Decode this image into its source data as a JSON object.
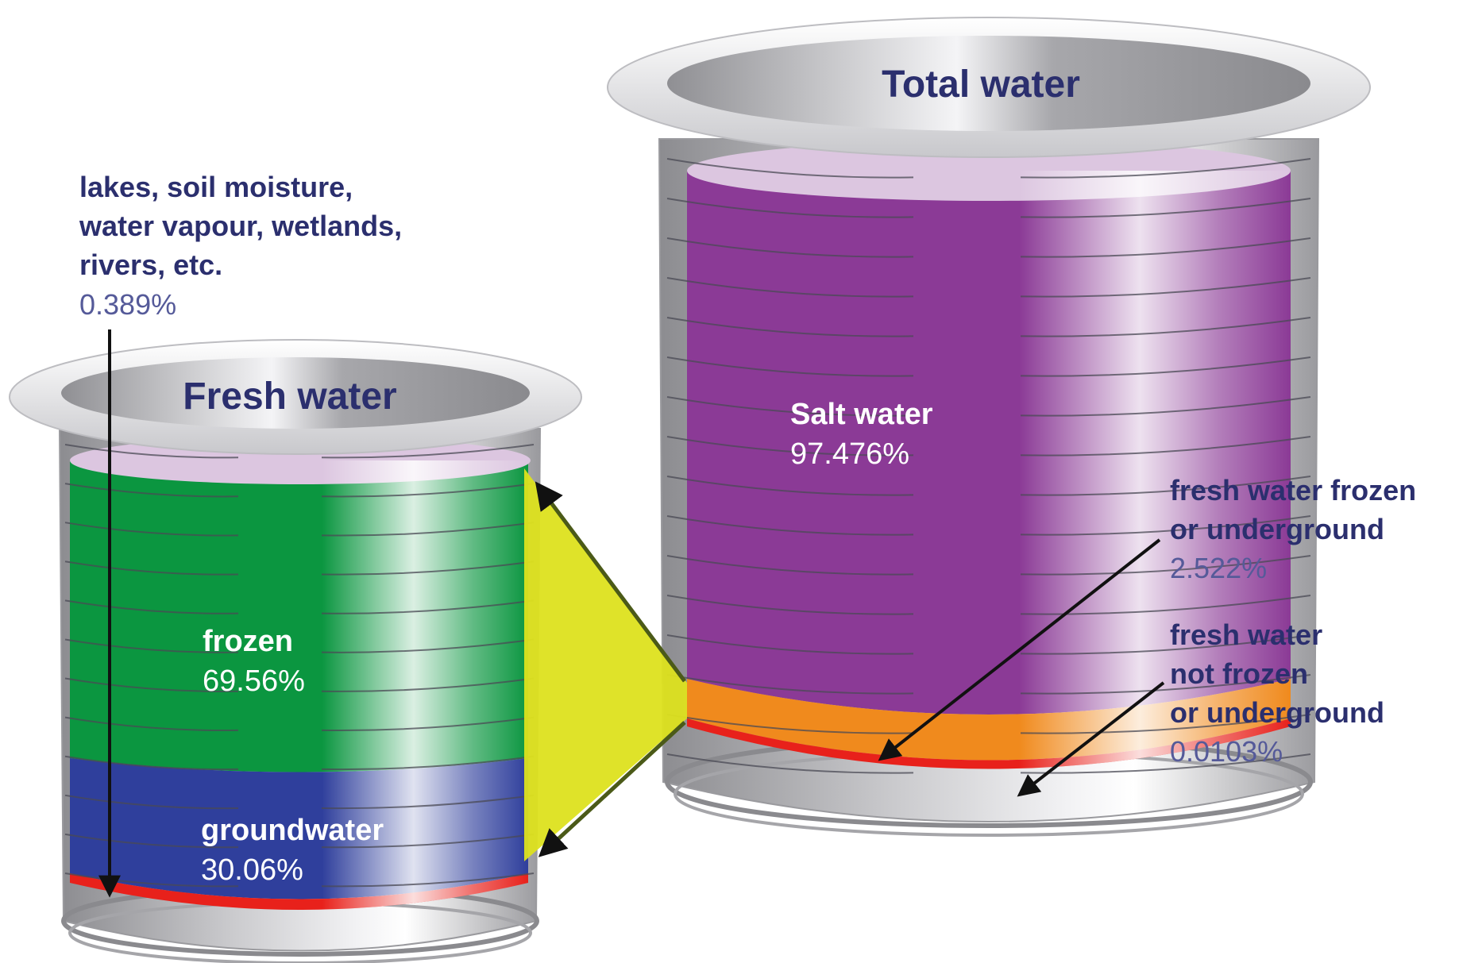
{
  "total_water": {
    "title": "Total water",
    "salt": {
      "label": "Salt water",
      "value": "97.476%"
    },
    "frozen_ground": {
      "label_line1": "fresh water frozen",
      "label_line2": "or underground",
      "value": "2.522%"
    },
    "not_frozen": {
      "label_line1": "fresh water",
      "label_line2": "not frozen",
      "label_line3": "or underground",
      "value": "0.0103%"
    }
  },
  "fresh_water": {
    "title": "Fresh water",
    "frozen": {
      "label": "frozen",
      "value": "69.56%"
    },
    "groundwater": {
      "label": "groundwater",
      "value": "30.06%"
    },
    "lakes": {
      "label_line1": "lakes, soil moisture,",
      "label_line2": "water vapour, wetlands,",
      "label_line3": "rivers, etc.",
      "value": "0.389%"
    }
  },
  "colors": {
    "salt": "#8b3a96",
    "frozen": "#0b9640",
    "groundwater": "#2f3f9c",
    "surface": "#e8211b",
    "frozen_or_underground": "#f08a1d",
    "connector": "#dde21e",
    "rim": "#d6d6d8",
    "title": "#2b2f6e"
  }
}
